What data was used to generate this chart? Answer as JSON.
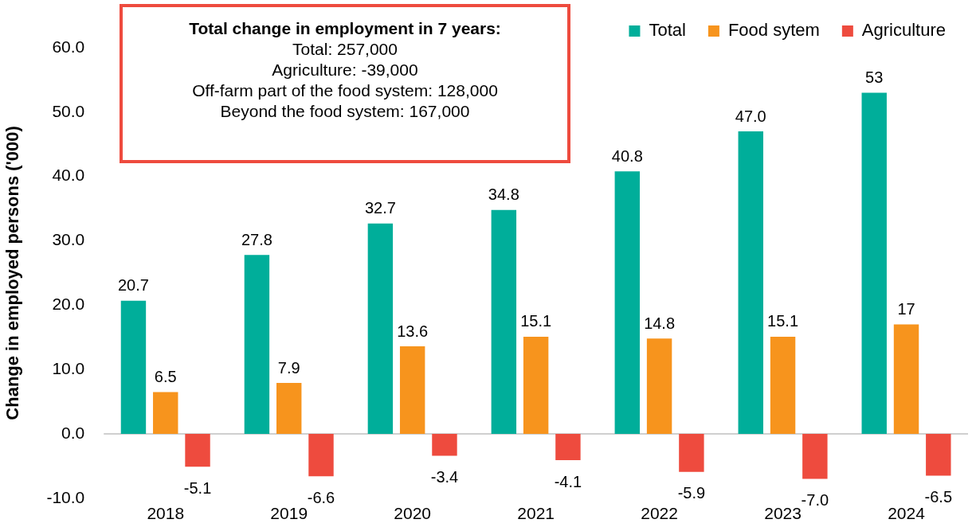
{
  "chart_data": {
    "type": "bar",
    "ylabel": "Change in employed persons ('000)",
    "categories": [
      "2018",
      "2019",
      "2020",
      "2021",
      "2022",
      "2023",
      "2024"
    ],
    "series": [
      {
        "name": "Total",
        "color": "#00ae9a",
        "values": [
          20.7,
          27.8,
          32.7,
          34.8,
          40.8,
          47.0,
          53
        ],
        "value_labels": [
          "20.7",
          "27.8",
          "32.7",
          "34.8",
          "40.8",
          "47.0",
          "53"
        ]
      },
      {
        "name": "Food sytem",
        "color": "#f7941d",
        "values": [
          6.5,
          7.9,
          13.6,
          15.1,
          14.8,
          15.1,
          17
        ],
        "value_labels": [
          "6.5",
          "7.9",
          "13.6",
          "15.1",
          "14.8",
          "15.1",
          "17"
        ]
      },
      {
        "name": "Agriculture",
        "color": "#ee4b3e",
        "values": [
          -5.1,
          -6.6,
          -3.4,
          -4.1,
          -5.9,
          -7.0,
          -6.5
        ],
        "value_labels": [
          "-5.1",
          "-6.6",
          "-3.4",
          "-4.1",
          "-5.9",
          "-7.0",
          "-6.5"
        ]
      }
    ],
    "ylim": [
      -10,
      60
    ],
    "ref_lines": [
      {
        "axis": "y",
        "value": 0,
        "color": "#bfbfbf"
      }
    ],
    "yticks": [
      {
        "value": -10,
        "label": "-10.0"
      },
      {
        "value": 0,
        "label": "0.0"
      },
      {
        "value": 10,
        "label": "10.0"
      },
      {
        "value": 20,
        "label": "20.0"
      },
      {
        "value": 30,
        "label": "30.0"
      },
      {
        "value": 40,
        "label": "40.0"
      },
      {
        "value": 50,
        "label": "50.0"
      },
      {
        "value": 60,
        "label": "60.0"
      }
    ],
    "grid": false,
    "legend": "top right",
    "annotations": [
      "Total change in employment in 7 years:",
      "Total: 257,000",
      "Agriculture: -39,000",
      "Off-farm part of the food system: 128,000",
      "Beyond the food system: 167,000"
    ]
  }
}
